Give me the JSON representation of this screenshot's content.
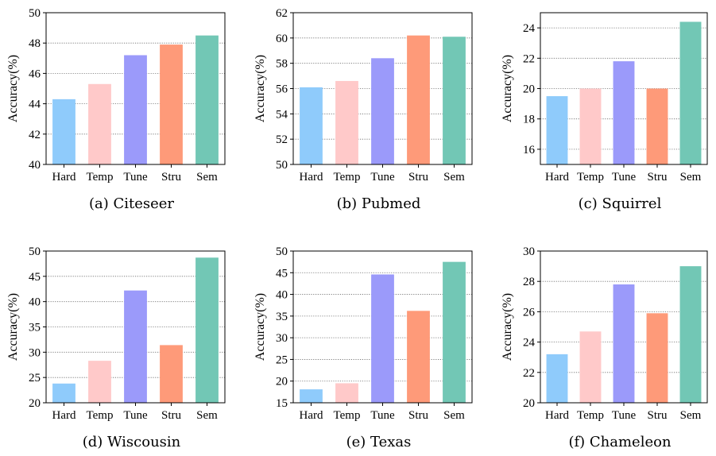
{
  "colors": {
    "Hard": "#8fcbfb",
    "Temp": "#ffc9c9",
    "Tune": "#9b9afa",
    "Stru": "#fe9a79",
    "Sem": "#72c7b5"
  },
  "chart_data": [
    {
      "type": "bar",
      "caption": "(a)  Citeseer",
      "categories": [
        "Hard",
        "Temp",
        "Tune",
        "Stru",
        "Sem"
      ],
      "values": [
        44.3,
        45.3,
        47.2,
        47.9,
        48.5
      ],
      "ylabel": "Accuracy(%)",
      "ylim": [
        40,
        50
      ],
      "yticks": [
        40,
        42,
        44,
        46,
        48,
        50
      ],
      "grid": true
    },
    {
      "type": "bar",
      "caption": "(b)  Pubmed",
      "categories": [
        "Hard",
        "Temp",
        "Tune",
        "Stru",
        "Sem"
      ],
      "values": [
        56.1,
        56.6,
        58.4,
        60.2,
        60.1
      ],
      "ylabel": "Accuracy(%)",
      "ylim": [
        50,
        62
      ],
      "yticks": [
        50,
        52,
        54,
        56,
        58,
        60,
        62
      ],
      "grid": true
    },
    {
      "type": "bar",
      "caption": "(c)  Squirrel",
      "categories": [
        "Hard",
        "Temp",
        "Tune",
        "Stru",
        "Sem"
      ],
      "values": [
        19.5,
        20.0,
        21.8,
        20.0,
        24.4
      ],
      "ylabel": "Accuracy(%)",
      "ylim": [
        15,
        25
      ],
      "yticks": [
        16,
        18,
        20,
        22,
        24
      ],
      "grid": true
    },
    {
      "type": "bar",
      "caption": "(d)  Wiscousin",
      "categories": [
        "Hard",
        "Temp",
        "Tune",
        "Stru",
        "Sem"
      ],
      "values": [
        23.8,
        28.3,
        42.2,
        31.4,
        48.7
      ],
      "ylabel": "Accuracy(%)",
      "ylim": [
        20,
        50
      ],
      "yticks": [
        20,
        25,
        30,
        35,
        40,
        45,
        50
      ],
      "grid": true
    },
    {
      "type": "bar",
      "caption": "(e)  Texas",
      "categories": [
        "Hard",
        "Temp",
        "Tune",
        "Stru",
        "Sem"
      ],
      "values": [
        18.1,
        19.5,
        44.6,
        36.2,
        47.5
      ],
      "ylabel": "Accuracy(%)",
      "ylim": [
        15,
        50
      ],
      "yticks": [
        15,
        20,
        25,
        30,
        35,
        40,
        45,
        50
      ],
      "grid": true
    },
    {
      "type": "bar",
      "caption": "(f)  Chameleon",
      "categories": [
        "Hard",
        "Temp",
        "Tune",
        "Stru",
        "Sem"
      ],
      "values": [
        23.2,
        24.7,
        27.8,
        25.9,
        29.0
      ],
      "ylabel": "Accuracy(%)",
      "ylim": [
        20,
        30
      ],
      "yticks": [
        20,
        22,
        24,
        26,
        28,
        30
      ],
      "grid": true
    }
  ]
}
